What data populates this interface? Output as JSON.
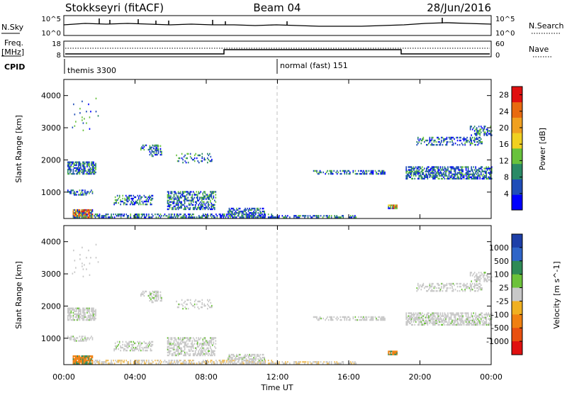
{
  "header": {
    "station": "Stokkseyri (fitACF)",
    "beam": "Beam 04",
    "date": "28/Jun/2016"
  },
  "noise_panel": {
    "left_label": "N.Sky",
    "right_label": "N.Search",
    "left_ticks": [
      "10^5",
      "10^0"
    ],
    "right_ticks": [
      "10^5",
      "10^0"
    ]
  },
  "freq_panel": {
    "left_label_1": "Freq.",
    "left_label_2": "[MHz]",
    "right_label": "Nave",
    "left_ticks": [
      "18",
      "8"
    ],
    "right_ticks": [
      "60",
      "0"
    ]
  },
  "cpid": {
    "label": "CPID",
    "segments": [
      {
        "name": "themis 3300",
        "start_hour": 0
      },
      {
        "name": "normal (fast) 151",
        "start_hour": 12
      }
    ]
  },
  "colors": {
    "scatter_blue": "#1f5cc0",
    "scatter_green": "#2f8f5a",
    "ground_grey": "#c8c8c8",
    "axis": "#000000",
    "midnight_dash": "#bfbfbf"
  },
  "chart_data": [
    {
      "type": "heatmap",
      "name": "power",
      "ylabel": "Slant Range [km]",
      "ylim": [
        180,
        4500
      ],
      "yticks": [
        1000,
        2000,
        3000,
        4000
      ],
      "xlim": [
        0,
        24
      ],
      "colorbar_label": "Power [dB]",
      "colorbar_ticks": [
        4,
        8,
        12,
        16,
        20,
        24,
        28
      ],
      "colorbar_range": [
        0,
        30
      ],
      "colorbar_colors": [
        "#0000ff",
        "#1f4db8",
        "#2a8a66",
        "#68c23c",
        "#f0d020",
        "#f0a020",
        "#e86a10",
        "#e01010"
      ]
    },
    {
      "type": "heatmap",
      "name": "velocity",
      "ylabel": "Slant Range [km]",
      "ylim": [
        180,
        4500
      ],
      "yticks": [
        1000,
        2000,
        3000,
        4000
      ],
      "xlim": [
        0,
        24
      ],
      "xticks": [
        "00:00",
        "04:00",
        "08:00",
        "12:00",
        "16:00",
        "20:00",
        "00:00"
      ],
      "xlabel": "Time UT",
      "colorbar_label": "Velocity [m s^-1]",
      "colorbar_ticks": [
        "1000",
        "500",
        "100",
        "25",
        "-25",
        "-100",
        "-500",
        "-1000"
      ],
      "colorbar_colors": [
        "#1d3fa8",
        "#2f65c8",
        "#2e8a56",
        "#6cc23a",
        "#c8c8c8",
        "#f0b020",
        "#f08010",
        "#e85010",
        "#e01010"
      ]
    }
  ]
}
